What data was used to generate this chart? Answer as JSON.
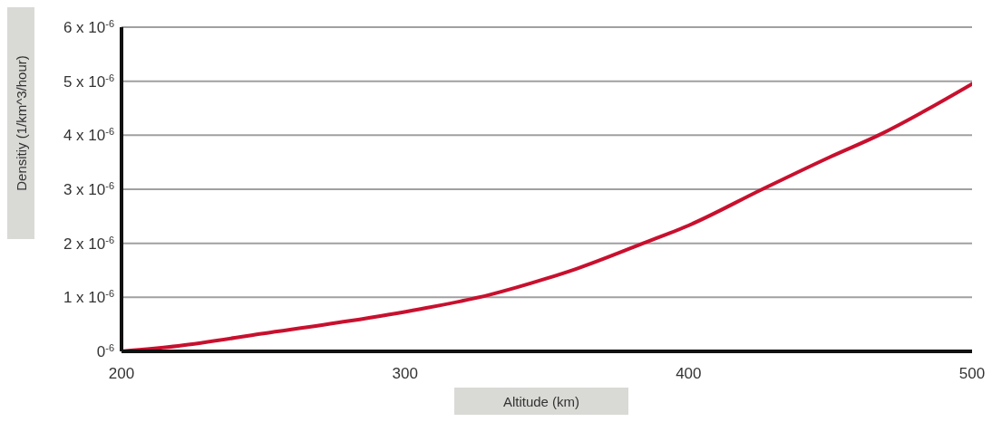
{
  "chart_data": {
    "type": "line",
    "xlabel": "Altitude (km)",
    "ylabel": "Densitiy (1/km^3/hour)",
    "x": [
      200,
      220,
      250,
      280,
      305,
      330,
      350,
      360,
      384,
      400,
      426,
      450,
      467,
      500
    ],
    "series": [
      {
        "color": "#c8102e",
        "values": [
          0,
          1e-07,
          3.3e-07,
          5.6e-07,
          7.8e-07,
          1.05e-06,
          1.35e-06,
          1.52e-06,
          2e-06,
          2.33e-06,
          3e-06,
          3.6e-06,
          4e-06,
          4.95e-06
        ]
      }
    ],
    "xlim": [
      200,
      500
    ],
    "xticks": [
      200,
      300,
      400,
      500
    ],
    "ylim": [
      0,
      6e-06
    ],
    "yticks": [
      {
        "value": 0,
        "label": "0$^{-6}$"
      },
      {
        "value": 1e-06,
        "label": "1 x 10$^{-6}$"
      },
      {
        "value": 2e-06,
        "label": "2 x 10$^{-6}$"
      },
      {
        "value": 3e-06,
        "label": "3 x 10$^{-6}$"
      },
      {
        "value": 4e-06,
        "label": "4 x 10$^{-6}$"
      },
      {
        "value": 5e-06,
        "label": "5 x 10$^{-6}$"
      },
      {
        "value": 6e-06,
        "label": "6 x 10$^{-6}$"
      }
    ],
    "grid": "y",
    "marker": "none",
    "line_style": "solid"
  }
}
